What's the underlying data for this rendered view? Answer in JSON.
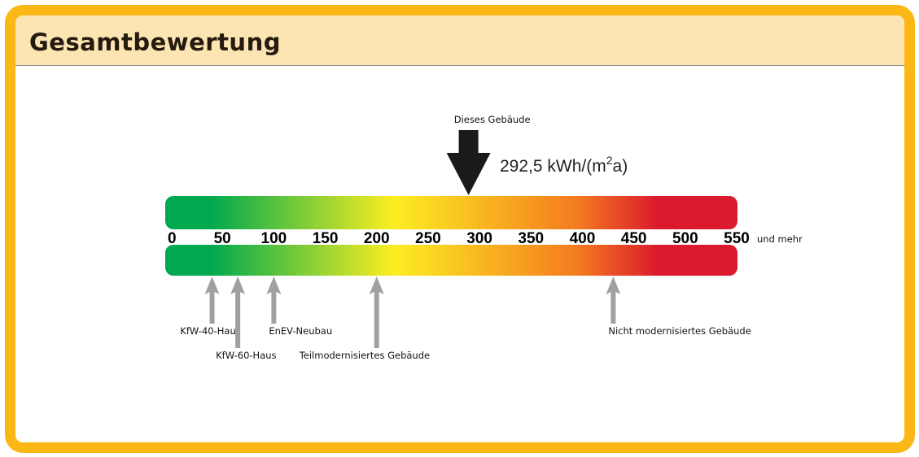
{
  "header": {
    "title": "Gesamtbewertung"
  },
  "chart_data": {
    "type": "gauge",
    "title": "Gesamtbewertung",
    "xlim": [
      0,
      550
    ],
    "ticks": [
      0,
      50,
      100,
      150,
      200,
      250,
      300,
      350,
      400,
      450,
      500,
      550
    ],
    "tick_suffix": "und mehr",
    "pointer": {
      "label": "Dieses Gebäude",
      "value": 292.5,
      "value_text": "292,5 kWh/(m",
      "value_sup": "2",
      "value_tail": "a)"
    },
    "references": [
      {
        "label": "KfW-40-Haus",
        "value": 40
      },
      {
        "label": "KfW-60-Haus",
        "value": 65
      },
      {
        "label": "EnEV-Neubau",
        "value": 100
      },
      {
        "label": "Teilmodernisiertes Gebäude",
        "value": 200
      },
      {
        "label": "Nicht modernisiertes Gebäude",
        "value": 430
      }
    ],
    "colors": {
      "green": "#00a94f",
      "yellow": "#fcee21",
      "orange": "#f47b20",
      "red": "#dc1a2d",
      "arrow": "#a0a0a0",
      "pointer": "#1a1a1a"
    }
  }
}
